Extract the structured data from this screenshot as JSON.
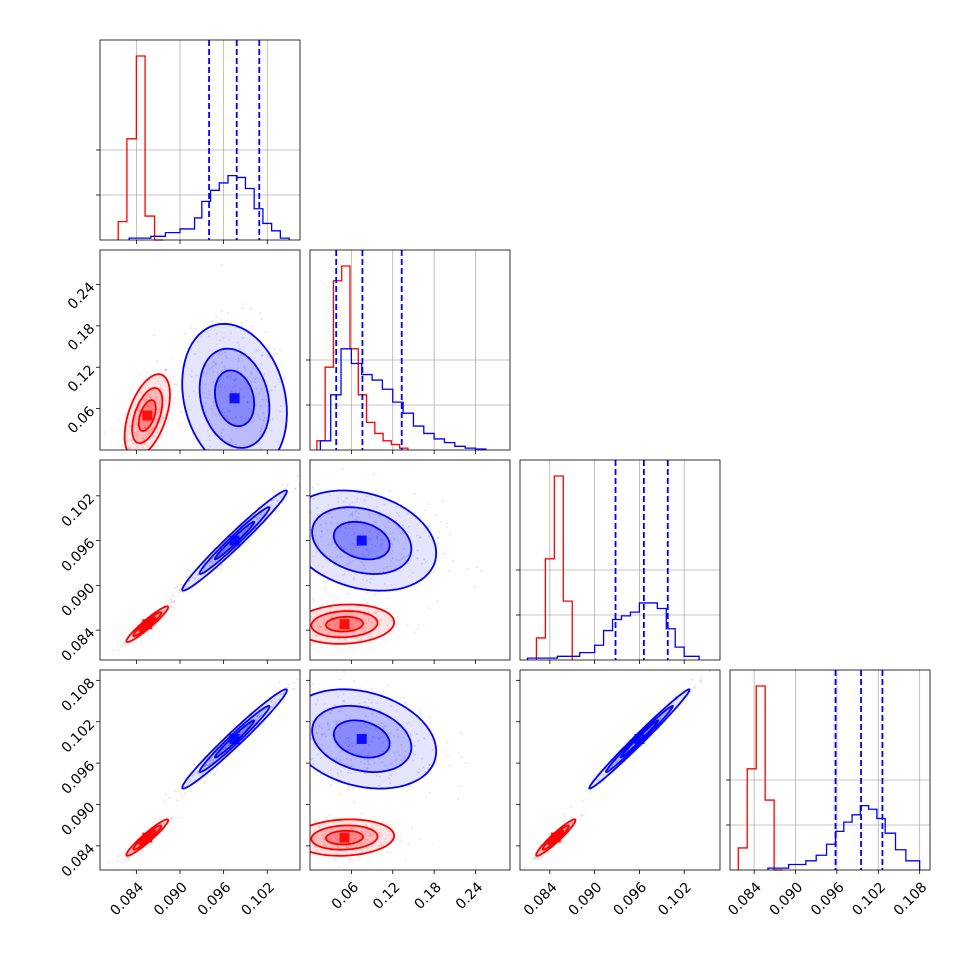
{
  "chart_data": {
    "type": "corner",
    "grid": true,
    "series": [
      {
        "color": "#ff0000"
      },
      {
        "color": "#0000ff"
      }
    ],
    "axes": {
      "p1": {
        "lim": [
          0.079,
          0.1065
        ],
        "ticks": [
          "0.084",
          "0.090",
          "0.096",
          "0.102"
        ]
      },
      "p2": {
        "lim": [
          0.0,
          0.29
        ],
        "ticks": [
          "0.06",
          "0.12",
          "0.18",
          "0.24"
        ]
      },
      "p3": {
        "lim": [
          0.08,
          0.1068
        ],
        "ticks": [
          "0.084",
          "0.090",
          "0.096",
          "0.102"
        ]
      },
      "p4": {
        "lim": [
          0.0805,
          0.1095
        ],
        "ticks": [
          "0.084",
          "0.090",
          "0.096",
          "0.102",
          "0.108"
        ]
      }
    },
    "marginals": [
      {
        "param": "p1",
        "quantiles_blue": [
          0.094,
          0.0978,
          0.1009
        ],
        "hist_red": {
          "edges": [
            0.0815,
            0.0827,
            0.084,
            0.0852,
            0.0865,
            0.0877
          ],
          "counts": [
            0.1,
            0.55,
            1.0,
            0.13,
            0.0
          ]
        },
        "hist_blue": {
          "edges": [
            0.083,
            0.086,
            0.088,
            0.09,
            0.092,
            0.093,
            0.0942,
            0.0954,
            0.0966,
            0.0978,
            0.099,
            0.1002,
            0.1014,
            0.1026,
            0.1038,
            0.105
          ],
          "counts": [
            0.01,
            0.02,
            0.04,
            0.06,
            0.12,
            0.21,
            0.27,
            0.31,
            0.35,
            0.34,
            0.28,
            0.17,
            0.09,
            0.05,
            0.01
          ]
        }
      },
      {
        "param": "p2",
        "quantiles_blue": [
          0.038,
          0.076,
          0.133
        ],
        "hist_red": {
          "edges": [
            0.01,
            0.022,
            0.034,
            0.046,
            0.058,
            0.07,
            0.082,
            0.094,
            0.106,
            0.118,
            0.13,
            0.142
          ],
          "counts": [
            0.05,
            0.45,
            0.92,
            1.0,
            0.55,
            0.3,
            0.15,
            0.09,
            0.05,
            0.03,
            0.01
          ]
        },
        "hist_blue": {
          "edges": [
            0.015,
            0.03,
            0.045,
            0.06,
            0.075,
            0.09,
            0.105,
            0.12,
            0.135,
            0.15,
            0.165,
            0.18,
            0.195,
            0.21,
            0.225,
            0.24,
            0.255
          ],
          "counts": [
            0.05,
            0.3,
            0.55,
            0.47,
            0.41,
            0.38,
            0.33,
            0.26,
            0.2,
            0.13,
            0.09,
            0.06,
            0.04,
            0.02,
            0.01,
            0.005
          ]
        }
      },
      {
        "param": "p3",
        "quantiles_blue": [
          0.0928,
          0.0966,
          0.0998
        ],
        "hist_red": {
          "edges": [
            0.0822,
            0.0834,
            0.0846,
            0.0858,
            0.087
          ],
          "counts": [
            0.12,
            0.55,
            1.0,
            0.32
          ]
        },
        "hist_blue": {
          "edges": [
            0.081,
            0.085,
            0.088,
            0.09,
            0.0912,
            0.0924,
            0.0936,
            0.0948,
            0.096,
            0.0972,
            0.0984,
            0.0996,
            0.1008,
            0.102,
            0.104
          ],
          "counts": [
            0.01,
            0.02,
            0.04,
            0.08,
            0.16,
            0.22,
            0.24,
            0.26,
            0.31,
            0.31,
            0.28,
            0.17,
            0.07,
            0.02
          ]
        }
      },
      {
        "param": "p4",
        "quantiles_blue": [
          0.0958,
          0.0995,
          0.1026
        ],
        "hist_red": {
          "edges": [
            0.0817,
            0.083,
            0.0843,
            0.0856,
            0.0869,
            0.0882
          ],
          "counts": [
            0.12,
            0.55,
            1.0,
            0.38,
            0.0
          ]
        },
        "hist_blue": {
          "edges": [
            0.086,
            0.089,
            0.0915,
            0.093,
            0.0945,
            0.0958,
            0.097,
            0.0982,
            0.0994,
            0.1006,
            0.1018,
            0.103,
            0.1045,
            0.106,
            0.108
          ],
          "counts": [
            0.01,
            0.03,
            0.05,
            0.08,
            0.14,
            0.21,
            0.26,
            0.3,
            0.35,
            0.33,
            0.28,
            0.2,
            0.11,
            0.05
          ]
        }
      }
    ],
    "joint_distributions": [
      {
        "x_param": "p1",
        "y_param": "p2",
        "red": {
          "center": [
            0.0855,
            0.05
          ],
          "spread": [
            0.0013,
            0.025
          ],
          "rho": 0.5
        },
        "blue": {
          "center": [
            0.0975,
            0.075
          ],
          "spread": [
            0.003,
            0.045
          ],
          "rho": -0.2
        }
      },
      {
        "x_param": "p1",
        "y_param": "p3",
        "red": {
          "center": [
            0.0855,
            0.0848
          ],
          "spread": [
            0.0012,
            0.001
          ],
          "rho": 0.95
        },
        "blue": {
          "center": [
            0.0975,
            0.096
          ],
          "spread": [
            0.003,
            0.0028
          ],
          "rho": 0.98
        }
      },
      {
        "x_param": "p2",
        "y_param": "p3",
        "red": {
          "center": [
            0.05,
            0.0848
          ],
          "spread": [
            0.03,
            0.0011
          ],
          "rho": 0.1
        },
        "blue": {
          "center": [
            0.075,
            0.096
          ],
          "spread": [
            0.045,
            0.0028
          ],
          "rho": -0.25
        }
      },
      {
        "x_param": "p1",
        "y_param": "p4",
        "red": {
          "center": [
            0.0855,
            0.0852
          ],
          "spread": [
            0.0012,
            0.0011
          ],
          "rho": 0.95
        },
        "blue": {
          "center": [
            0.0975,
            0.0995
          ],
          "spread": [
            0.003,
            0.003
          ],
          "rho": 0.98
        }
      },
      {
        "x_param": "p2",
        "y_param": "p4",
        "red": {
          "center": [
            0.05,
            0.0852
          ],
          "spread": [
            0.03,
            0.0011
          ],
          "rho": 0.1
        },
        "blue": {
          "center": [
            0.075,
            0.0995
          ],
          "spread": [
            0.045,
            0.003
          ],
          "rho": -0.25
        }
      },
      {
        "x_param": "p3",
        "y_param": "p4",
        "red": {
          "center": [
            0.0848,
            0.0852
          ],
          "spread": [
            0.0011,
            0.0011
          ],
          "rho": 0.95
        },
        "blue": {
          "center": [
            0.096,
            0.0995
          ],
          "spread": [
            0.0028,
            0.003
          ],
          "rho": 0.99
        }
      }
    ]
  }
}
